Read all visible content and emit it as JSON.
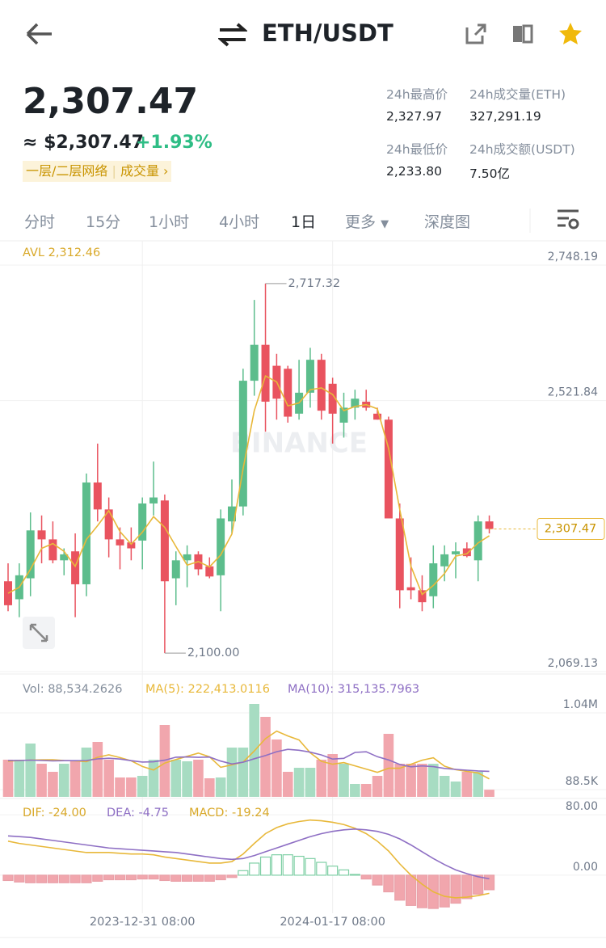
{
  "header": {
    "pair": "ETH/USDT"
  },
  "ticker": {
    "price": "2,307.47",
    "usd": "≈ $2,307.47",
    "change": "+1.93%",
    "tags": [
      "一层/二层网络",
      "成交量 ›"
    ],
    "stats": [
      {
        "label": "24h最高价",
        "value": "2,327.97"
      },
      {
        "label": "24h成交量(ETH)",
        "value": "327,291.19"
      },
      {
        "label": "24h最低价",
        "value": "2,233.80"
      },
      {
        "label": "24h成交额(USDT)",
        "value": "7.50亿"
      }
    ]
  },
  "tabs": [
    "分时",
    "15分",
    "1小时",
    "4小时",
    "1日",
    "更多",
    "深度图"
  ],
  "chart_data": [
    {
      "type": "candlestick",
      "title": "AVL 2,312.46",
      "watermark": "BINANCE",
      "categories": [
        null,
        null,
        null,
        null,
        null,
        null,
        null,
        null,
        null,
        null,
        null,
        null,
        "2023-12-31 08:00",
        null,
        null,
        null,
        null,
        null,
        null,
        null,
        null,
        null,
        null,
        null,
        null,
        null,
        null,
        null,
        null,
        "2024-01-17 08:00",
        null,
        null,
        null,
        null,
        null,
        null,
        null,
        null,
        null,
        null,
        null,
        null,
        null,
        null
      ],
      "open": [
        2220,
        2190,
        2225,
        2305,
        2290,
        2255,
        2270,
        2215,
        2385,
        2340,
        2290,
        2285,
        2288,
        2350,
        2355,
        2225,
        2255,
        2265,
        2245,
        2230,
        2320,
        2345,
        2555,
        2615,
        2580,
        2575,
        2500,
        2535,
        2590,
        2550,
        2485,
        2510,
        2520,
        2500,
        2490,
        2325,
        2210,
        2205,
        2195,
        2245,
        2265,
        2275,
        2255,
        2320
      ],
      "high": [
        2250,
        2250,
        2335,
        2330,
        2320,
        2275,
        2300,
        2400,
        2450,
        2360,
        2310,
        2310,
        2360,
        2420,
        2365,
        2270,
        2280,
        2270,
        2260,
        2340,
        2390,
        2575,
        2690,
        2717.32,
        2600,
        2580,
        2590,
        2610,
        2600,
        2560,
        2535,
        2540,
        2540,
        2510,
        2495,
        2350,
        2260,
        2230,
        2280,
        2280,
        2285,
        2285,
        2330,
        2330
      ],
      "low": [
        2170,
        2160,
        2195,
        2250,
        2250,
        2230,
        2160,
        2195,
        2320,
        2260,
        2240,
        2255,
        2240,
        2330,
        2100,
        2180,
        2210,
        2230,
        2225,
        2170,
        2300,
        2330,
        2530,
        2470,
        2490,
        2485,
        2490,
        2510,
        2490,
        2450,
        2460,
        2490,
        2505,
        2490,
        2330,
        2175,
        2190,
        2170,
        2175,
        2220,
        2225,
        2260,
        2220,
        2300
      ],
      "close": [
        2180,
        2230,
        2305,
        2290,
        2255,
        2265,
        2215,
        2385,
        2340,
        2290,
        2280,
        2275,
        2350,
        2360,
        2220,
        2255,
        2265,
        2240,
        2228,
        2325,
        2345,
        2555,
        2615,
        2520,
        2525,
        2495,
        2535,
        2590,
        2505,
        2500,
        2510,
        2525,
        2510,
        2490,
        2325,
        2205,
        2205,
        2185,
        2250,
        2265,
        2270,
        2262,
        2320,
        2307.47
      ],
      "ma": [
        2200,
        2210,
        2240,
        2275,
        2283,
        2270,
        2245,
        2290,
        2313,
        2338,
        2303,
        2282,
        2302,
        2328,
        2310,
        2278,
        2247,
        2253,
        2244,
        2264,
        2299,
        2408,
        2505,
        2563,
        2553,
        2513,
        2518,
        2540,
        2543,
        2532,
        2505,
        2512,
        2515,
        2508,
        2442,
        2340,
        2245,
        2198,
        2213,
        2233,
        2262,
        2266,
        2284,
        2296
      ],
      "up_color": "#5cbd8c",
      "down_color": "#e9535f",
      "ma_color": "#e8b83a",
      "ylim": [
        2069.13,
        2748.19
      ],
      "yticks": [
        {
          "value": 2748.19,
          "label": "2,748.19"
        },
        {
          "value": 2521.84,
          "label": "2,521.84"
        },
        {
          "value": 2069.13,
          "label": "2,069.13"
        }
      ],
      "high_label": "2,717.32",
      "low_label": "2,100.00",
      "last_label": "2,307.47"
    },
    {
      "type": "bar",
      "series": [
        {
          "name": "Vol: 88,534.2626",
          "values": [
            460000,
            460000,
            660000,
            410000,
            310000,
            410000,
            440000,
            610000,
            680000,
            460000,
            240000,
            240000,
            260000,
            460000,
            890000,
            460000,
            440000,
            460000,
            230000,
            240000,
            610000,
            610000,
            1150000,
            990000,
            710000,
            310000,
            360000,
            360000,
            460000,
            530000,
            410000,
            160000,
            160000,
            260000,
            780000,
            410000,
            410000,
            410000,
            410000,
            260000,
            190000,
            310000,
            310000,
            88534.2626
          ]
        },
        {
          "name": "MA(5): 222,413.0116",
          "color": "#e8b83a",
          "values": [
            440000,
            450000,
            455000,
            458000,
            460000,
            450000,
            446000,
            436000,
            490000,
            520000,
            486000,
            446000,
            376000,
            332000,
            418000,
            462000,
            502000,
            542000,
            496000,
            366000,
            396000,
            430000,
            568000,
            720000,
            814000,
            754000,
            704000,
            546000,
            440000,
            404000,
            424000,
            384000,
            344000,
            304000,
            354000,
            354000,
            404000,
            454000,
            484000,
            380000,
            336000,
            316000,
            296000,
            222413.0116
          ]
        },
        {
          "name": "MA(10): 315,135.7963",
          "color": "#8e6fc4",
          "values": [
            450000,
            450000,
            455000,
            450000,
            445000,
            448000,
            448000,
            450000,
            470000,
            478000,
            468000,
            448000,
            431000,
            434000,
            454000,
            491000,
            494000,
            489000,
            493000,
            443000,
            407000,
            429000,
            472000,
            511000,
            559000,
            588000,
            577000,
            553000,
            519000,
            468000,
            477000,
            550000,
            558000,
            497000,
            457000,
            401000,
            372000,
            383000,
            374000,
            352000,
            340000,
            330000,
            321000,
            315135.7963
          ]
        }
      ],
      "up_color": "#a7dcc2",
      "down_color": "#f1a6ad",
      "ylim": [
        0,
        1180000
      ],
      "yticks": [
        {
          "value": 1040000,
          "label": "1.04M"
        },
        {
          "value": 88500,
          "label": "88.5K"
        }
      ]
    },
    {
      "type": "macd",
      "series": [
        {
          "name": "DIF: -24.00",
          "color": "#e8b83a",
          "values": [
            45,
            42,
            40,
            38,
            36,
            34,
            32,
            30,
            30,
            30,
            29,
            28,
            28,
            27,
            24,
            22,
            20,
            18,
            16,
            16,
            18,
            28,
            42,
            55,
            63,
            68,
            71,
            73,
            72,
            70,
            67,
            62,
            55,
            45,
            32,
            15,
            0,
            -12,
            -22,
            -28,
            -30,
            -29,
            -27,
            -24.0
          ]
        },
        {
          "name": "DEA: -4.75",
          "color": "#8e6fc4",
          "values": [
            52,
            51,
            50,
            48,
            46,
            44,
            42,
            40,
            38,
            36,
            35,
            34,
            33,
            32,
            31,
            30,
            28,
            26,
            24,
            22,
            21,
            22,
            26,
            31,
            36,
            41,
            46,
            51,
            55,
            58,
            60,
            61,
            60,
            58,
            54,
            48,
            40,
            31,
            22,
            14,
            7,
            2,
            -2,
            -4.75
          ]
        },
        {
          "name": "MACD: -19.24",
          "color": "#e8b83a",
          "values": [
            -7,
            -9,
            -10,
            -10,
            -10,
            -10,
            -10,
            -10,
            -8,
            -6,
            -6,
            -6,
            -5,
            -5,
            -7,
            -8,
            -8,
            -8,
            -8,
            -6,
            -3,
            6,
            16,
            24,
            27,
            27,
            25,
            22,
            17,
            12,
            7,
            1,
            -5,
            -13,
            -22,
            -33,
            -40,
            -43,
            -44,
            -42,
            -37,
            -31,
            -25,
            -19.24
          ]
        }
      ],
      "up_color": "#7fcfa5",
      "down_color": "#f1a6ad",
      "ylim": [
        -45,
        94
      ],
      "yticks": [
        {
          "value": 80,
          "label": "80.00"
        },
        {
          "value": 0,
          "label": "0.00"
        }
      ]
    }
  ]
}
